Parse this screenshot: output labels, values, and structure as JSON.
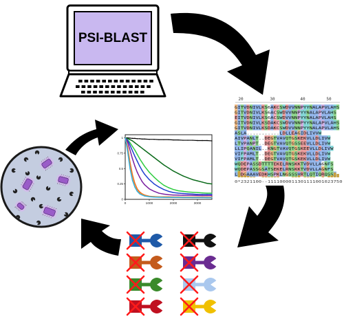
{
  "computer": {
    "screen_label": "PSI-BLAST",
    "screen_color": "#c9b8f0",
    "icon": "laptop-icon"
  },
  "alignment": {
    "ruler": [
      "20",
      "30",
      "40",
      "50"
    ],
    "consensus": "0*2321100--1111000011301111001023750",
    "rows": [
      "GITVDNIVLKS6AKCSWDVVNNPYYNALAPVLAHS",
      "GITVDNIVLKS6ACSWDVVNNPYYNALAPVLAHS",
      "EITVDNIVLKS6ACSWDVVNNPYYNALAPVLAHS",
      "GITVDNIVLKSDAKCSWDVVNNPYYNALAPVLAHS",
      "GITVDNIVLKSDAKCSWDVVNNPYYNALAPVLAHS",
      "ASLA...........LDLLEAGIDLIVVW",
      "AIVPANLT..DEGTVAVQTGSKEKVLLDLIVW",
      "LTVPANPT..DEGTVAVQTGSSEEVLLDLIVW",
      "LLIPQANIL..KNGTVAVQTGSKEEVLLDLIVW",
      "VIFPAMLT..DEGTVAVQTGSKEKVLLDLIVW",
      "VIFPAMLT..DEGTVAVQTGSKEKVLLDLIVW",
      "WQDEPASSDTTTTEKELRNSKKTVDVLLA6NFS",
      "WQDEPASSGSATSEKELRNSKKTVDVLLAGNFS",
      "LNDGAAAVEDKHSPKLNGSSSVRTLQTIQRQSSA"
    ],
    "colors": {
      "hydrophobic": "#7fa8e6",
      "polar": "#7dd07a",
      "charged": "#e88c8c",
      "glycine": "#f0b070",
      "special": "#c9a0dc",
      "aromatic": "#6fd0d0",
      "conservation": "#c8a040"
    }
  },
  "chart_data": {
    "type": "line",
    "title": "",
    "xlabel": "",
    "ylabel": "",
    "xlim": [
      0,
      3600
    ],
    "ylim": [
      0,
      1.05
    ],
    "x_ticks": [
      "0",
      "1000",
      "2000",
      "3000"
    ],
    "y_ticks": [
      "0",
      "0.25",
      "0.5",
      "0.75",
      "1"
    ],
    "x": [
      0,
      100,
      200,
      300,
      400,
      500,
      600,
      700,
      800,
      1000,
      1200,
      1400,
      1600,
      1800,
      2000,
      2200,
      2400,
      2600,
      2800,
      3000,
      3200,
      3400,
      3600
    ],
    "series": [
      {
        "color": "#000000",
        "values": [
          1.0,
          1.0,
          0.995,
          0.99,
          0.99,
          0.985,
          0.985,
          0.98,
          0.98,
          0.975,
          0.975,
          0.97,
          0.97,
          0.97,
          0.965,
          0.965,
          0.96,
          0.96,
          0.96,
          0.955,
          0.955,
          0.955,
          0.95
        ]
      },
      {
        "color": "#0a6a1a",
        "values": [
          1.0,
          0.99,
          0.97,
          0.95,
          0.92,
          0.89,
          0.86,
          0.83,
          0.8,
          0.74,
          0.68,
          0.62,
          0.56,
          0.51,
          0.46,
          0.42,
          0.38,
          0.35,
          0.32,
          0.3,
          0.28,
          0.26,
          0.25
        ]
      },
      {
        "color": "#2ecc40",
        "values": [
          1.0,
          0.97,
          0.92,
          0.86,
          0.8,
          0.73,
          0.66,
          0.6,
          0.54,
          0.44,
          0.36,
          0.29,
          0.23,
          0.19,
          0.16,
          0.14,
          0.13,
          0.12,
          0.115,
          0.11,
          0.105,
          0.1,
          0.1
        ]
      },
      {
        "color": "#2040d0",
        "values": [
          1.0,
          0.96,
          0.88,
          0.79,
          0.7,
          0.62,
          0.54,
          0.47,
          0.41,
          0.32,
          0.25,
          0.2,
          0.16,
          0.13,
          0.11,
          0.1,
          0.095,
          0.09,
          0.085,
          0.08,
          0.08,
          0.08,
          0.08
        ]
      },
      {
        "color": "#7a1fa0",
        "values": [
          1.0,
          0.93,
          0.8,
          0.66,
          0.54,
          0.44,
          0.36,
          0.29,
          0.24,
          0.17,
          0.13,
          0.1,
          0.085,
          0.075,
          0.07,
          0.068,
          0.066,
          0.065,
          0.064,
          0.063,
          0.062,
          0.062,
          0.061
        ]
      },
      {
        "color": "#f07020",
        "values": [
          1.0,
          0.85,
          0.6,
          0.4,
          0.26,
          0.17,
          0.12,
          0.09,
          0.07,
          0.05,
          0.045,
          0.04,
          0.04,
          0.04,
          0.038,
          0.038,
          0.037,
          0.037,
          0.036,
          0.036,
          0.036,
          0.035,
          0.035
        ]
      },
      {
        "color": "#ff9020",
        "values": [
          1.0,
          0.8,
          0.52,
          0.33,
          0.21,
          0.14,
          0.1,
          0.08,
          0.06,
          0.045,
          0.04,
          0.037,
          0.035,
          0.034,
          0.033,
          0.033,
          0.032,
          0.032,
          0.031,
          0.031,
          0.03,
          0.03,
          0.03
        ]
      },
      {
        "color": "#30b0e0",
        "values": [
          1.0,
          0.78,
          0.5,
          0.31,
          0.2,
          0.13,
          0.09,
          0.07,
          0.055,
          0.042,
          0.037,
          0.034,
          0.032,
          0.031,
          0.03,
          0.03,
          0.029,
          0.029,
          0.028,
          0.028,
          0.028,
          0.027,
          0.027
        ]
      }
    ]
  },
  "variants": {
    "rows": [
      {
        "left": "#1f5aa8",
        "right": "#111111"
      },
      {
        "left": "#c45b1c",
        "right": "#6a2c91"
      },
      {
        "left": "#3a8a2a",
        "right": "#aac8ee"
      },
      {
        "left": "#c01020",
        "right": "#f0c000"
      }
    ],
    "cross_color": "#ff1a1a",
    "icon": "protein-domain-icon"
  },
  "dish": {
    "icon": "petri-dish-icon",
    "fill": "#c4cde0",
    "bacteria_color": "#9a5cc8",
    "phage_color": "#222222"
  },
  "arrows": {
    "color": "#000000"
  }
}
